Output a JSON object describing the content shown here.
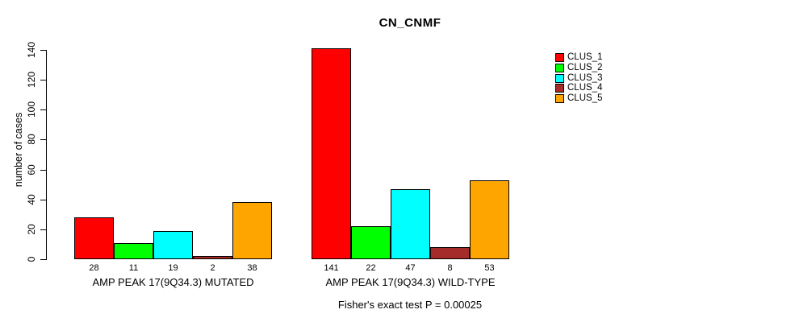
{
  "chart_data": {
    "type": "bar",
    "title": "CN_CNMF",
    "ylabel": "number of cases",
    "xlabel": "",
    "ylim": [
      0,
      140
    ],
    "yticks": [
      0,
      20,
      40,
      60,
      80,
      100,
      120,
      140
    ],
    "grid": false,
    "legend_position": "right",
    "bar_value_labels": true,
    "categories": [
      "AMP PEAK 17(9Q34.3) MUTATED",
      "AMP PEAK 17(9Q34.3) WILD-TYPE"
    ],
    "series": [
      {
        "name": "CLUS_1",
        "color": "#FF0000",
        "values": [
          28,
          141
        ]
      },
      {
        "name": "CLUS_2",
        "color": "#00FF00",
        "values": [
          11,
          22
        ]
      },
      {
        "name": "CLUS_3",
        "color": "#00FFFF",
        "values": [
          19,
          47
        ]
      },
      {
        "name": "CLUS_4",
        "color": "#A52A2A",
        "values": [
          2,
          8
        ]
      },
      {
        "name": "CLUS_5",
        "color": "#FFA500",
        "values": [
          38,
          53
        ]
      }
    ],
    "annotation": "Fisher's exact test P = 0.00025"
  }
}
